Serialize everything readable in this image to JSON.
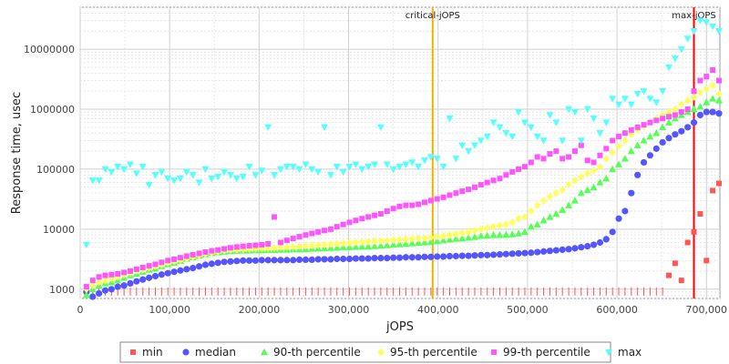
{
  "chart_data": {
    "type": "scatter",
    "xlabel": "jOPS",
    "ylabel": "Response time, usec",
    "xlim": [
      0,
      715000
    ],
    "ylim": [
      700,
      50000000
    ],
    "y_scale": "log",
    "grid": true,
    "x_ticks": [
      0,
      100000,
      200000,
      300000,
      400000,
      500000,
      600000,
      700000
    ],
    "x_tick_labels": [
      "0",
      "100,000",
      "200,000",
      "300,000",
      "400,000",
      "500,000",
      "600,000",
      "700,000"
    ],
    "y_ticks": [
      1000,
      10000,
      100000,
      1000000,
      10000000
    ],
    "y_tick_labels": [
      "1000",
      "10000",
      "100000",
      "1000000",
      "10000000"
    ],
    "markers": [
      {
        "label": "critical-jOPS",
        "x": 394000,
        "color": "#f0b400"
      },
      {
        "label": "max-jOPS",
        "x": 686000,
        "color": "#ff0000"
      }
    ],
    "legend_position": "bottom",
    "x": [
      7000,
      14000,
      21000,
      28000,
      35000,
      42000,
      49000,
      56000,
      63000,
      70000,
      77000,
      84000,
      91000,
      98000,
      105000,
      112000,
      119000,
      126000,
      133000,
      140000,
      147000,
      154000,
      161000,
      168000,
      175000,
      182000,
      189000,
      196000,
      203000,
      210000,
      217000,
      224000,
      231000,
      238000,
      245000,
      252000,
      259000,
      266000,
      273000,
      280000,
      287000,
      294000,
      301000,
      308000,
      315000,
      322000,
      329000,
      336000,
      343000,
      350000,
      357000,
      364000,
      371000,
      378000,
      385000,
      392000,
      399000,
      406000,
      413000,
      420000,
      427000,
      434000,
      441000,
      448000,
      455000,
      462000,
      469000,
      476000,
      483000,
      490000,
      497000,
      504000,
      511000,
      518000,
      525000,
      532000,
      539000,
      546000,
      553000,
      560000,
      567000,
      574000,
      581000,
      588000,
      595000,
      602000,
      609000,
      616000,
      623000,
      630000,
      637000,
      644000,
      651000,
      658000,
      665000,
      672000,
      679000,
      686000,
      693000,
      700000,
      707000,
      714000
    ],
    "series": [
      {
        "name": "min",
        "color": "#ff5555",
        "shape": "square",
        "values": [
          1000,
          1000,
          1000,
          1000,
          1000,
          1000,
          1000,
          1000,
          1000,
          1000,
          1000,
          1000,
          1000,
          1000,
          1000,
          1000,
          1000,
          1000,
          1000,
          1000,
          1000,
          1000,
          1000,
          1000,
          1000,
          1000,
          1000,
          1000,
          1000,
          1000,
          1000,
          1000,
          1000,
          1000,
          1000,
          1000,
          1000,
          1000,
          1000,
          1000,
          1000,
          1000,
          1000,
          1000,
          1000,
          1000,
          1000,
          1000,
          1000,
          1000,
          1000,
          1000,
          1000,
          1000,
          1000,
          1000,
          1000,
          1000,
          1000,
          1000,
          1000,
          1000,
          1000,
          1000,
          1000,
          1000,
          1000,
          1000,
          1000,
          1000,
          1000,
          1000,
          1000,
          1000,
          1000,
          1000,
          1000,
          1000,
          1000,
          1000,
          1000,
          1000,
          1000,
          1000,
          1000,
          1000,
          1000,
          1000,
          1000,
          1000,
          1000,
          1000,
          1000,
          1700,
          2700,
          1400,
          6000,
          9000,
          18000,
          3000,
          44000,
          58000
        ]
      },
      {
        "name": "median",
        "color": "#5555ff",
        "shape": "circle",
        "values": [
          900,
          750,
          850,
          950,
          1000,
          1100,
          1150,
          1250,
          1350,
          1450,
          1550,
          1650,
          1750,
          1850,
          1950,
          2050,
          2150,
          2250,
          2400,
          2550,
          2650,
          2750,
          2850,
          2900,
          2950,
          3000,
          3000,
          3000,
          3050,
          3050,
          3050,
          3050,
          3050,
          3050,
          3100,
          3100,
          3100,
          3150,
          3150,
          3150,
          3200,
          3200,
          3200,
          3250,
          3250,
          3250,
          3300,
          3300,
          3300,
          3350,
          3350,
          3400,
          3400,
          3400,
          3450,
          3450,
          3500,
          3500,
          3550,
          3550,
          3600,
          3600,
          3650,
          3700,
          3700,
          3750,
          3800,
          3850,
          3900,
          3950,
          4000,
          4050,
          4150,
          4250,
          4350,
          4450,
          4550,
          4650,
          4800,
          5000,
          5200,
          5500,
          6000,
          6800,
          9000,
          15000,
          20000,
          40000,
          80000,
          130000,
          170000,
          220000,
          280000,
          330000,
          380000,
          430000,
          500000,
          600000,
          800000,
          900000,
          900000,
          850000
        ]
      },
      {
        "name": "90-th percentile",
        "color": "#55ff55",
        "shape": "triangle-up",
        "values": [
          800,
          1000,
          1150,
          1250,
          1300,
          1400,
          1550,
          1700,
          1800,
          1950,
          2100,
          2200,
          2400,
          2600,
          2750,
          2950,
          3200,
          3400,
          3600,
          3800,
          4000,
          4100,
          4200,
          4300,
          4350,
          4400,
          4400,
          4450,
          4450,
          4500,
          4500,
          4550,
          4550,
          4600,
          4600,
          4650,
          4700,
          4750,
          4800,
          4850,
          4900,
          5000,
          5000,
          5050,
          5100,
          5100,
          5200,
          5300,
          5400,
          5500,
          5600,
          5700,
          5800,
          5900,
          6000,
          6100,
          6300,
          6500,
          6700,
          6900,
          7000,
          7200,
          7400,
          7700,
          7800,
          8000,
          8000,
          8100,
          8200,
          8500,
          9000,
          11000,
          12000,
          14000,
          16000,
          18000,
          21000,
          25000,
          30000,
          40000,
          45000,
          50000,
          60000,
          70000,
          100000,
          120000,
          150000,
          200000,
          250000,
          300000,
          350000,
          400000,
          500000,
          600000,
          700000,
          800000,
          900000,
          1000000,
          1100000,
          1300000,
          1500000,
          1400000
        ]
      },
      {
        "name": "95-th percentile",
        "color": "#ffff55",
        "shape": "diamond",
        "values": [
          1000,
          1150,
          1300,
          1400,
          1500,
          1600,
          1750,
          1850,
          2000,
          2100,
          2250,
          2400,
          2550,
          2750,
          2900,
          3050,
          3250,
          3450,
          3650,
          3850,
          4050,
          4200,
          4400,
          4500,
          4550,
          4600,
          4650,
          4700,
          4750,
          4800,
          4850,
          4950,
          5000,
          5050,
          5150,
          5250,
          5300,
          5400,
          5500,
          5600,
          5700,
          5800,
          5900,
          6000,
          6100,
          6200,
          6300,
          6400,
          6500,
          6600,
          6700,
          6800,
          6900,
          7000,
          7100,
          7300,
          7500,
          7700,
          8000,
          8300,
          8600,
          9000,
          9500,
          10000,
          10500,
          11000,
          11500,
          12000,
          13000,
          15000,
          16000,
          20000,
          25000,
          30000,
          35000,
          40000,
          45000,
          55000,
          65000,
          75000,
          85000,
          95000,
          110000,
          150000,
          190000,
          240000,
          300000,
          380000,
          450000,
          520000,
          600000,
          700000,
          800000,
          900000,
          1000000,
          1200000,
          1400000,
          1600000,
          1900000,
          2200000,
          2500000,
          1800000
        ]
      },
      {
        "name": "99-th percentile",
        "color": "#ff55ff",
        "shape": "square",
        "values": [
          1100,
          1400,
          1600,
          1700,
          1750,
          1800,
          1900,
          2000,
          2150,
          2300,
          2450,
          2600,
          2800,
          3000,
          3150,
          3350,
          3550,
          3750,
          3950,
          4150,
          4350,
          4500,
          4700,
          4900,
          5050,
          5200,
          5300,
          5400,
          5500,
          5700,
          16000,
          6000,
          6500,
          7000,
          7500,
          8000,
          8500,
          9000,
          9500,
          10000,
          11000,
          12000,
          13000,
          14000,
          15000,
          16000,
          17000,
          18000,
          20000,
          22000,
          24000,
          25000,
          25000,
          26000,
          28000,
          30000,
          32000,
          34000,
          37000,
          40000,
          43000,
          46000,
          50000,
          55000,
          60000,
          65000,
          70000,
          80000,
          90000,
          100000,
          110000,
          130000,
          160000,
          150000,
          180000,
          200000,
          150000,
          160000,
          200000,
          250000,
          140000,
          130000,
          170000,
          220000,
          300000,
          350000,
          400000,
          450000,
          500000,
          550000,
          600000,
          650000,
          700000,
          750000,
          800000,
          900000,
          1000000,
          2000000,
          3000000,
          3500000,
          4500000,
          3000000
        ]
      },
      {
        "name": "max",
        "color": "#55ffff",
        "shape": "triangle-down",
        "values": [
          5500,
          65000,
          65000,
          100000,
          90000,
          110000,
          100000,
          120000,
          85000,
          110000,
          55000,
          80000,
          90000,
          70000,
          65000,
          70000,
          90000,
          80000,
          60000,
          100000,
          70000,
          75000,
          90000,
          80000,
          70000,
          75000,
          110000,
          80000,
          95000,
          500000,
          80000,
          100000,
          110000,
          110000,
          100000,
          120000,
          100000,
          90000,
          500000,
          80000,
          110000,
          90000,
          110000,
          120000,
          100000,
          110000,
          120000,
          500000,
          120000,
          100000,
          110000,
          120000,
          130000,
          110000,
          140000,
          160000,
          150000,
          110000,
          700000,
          150000,
          250000,
          200000,
          250000,
          300000,
          350000,
          600000,
          500000,
          400000,
          350000,
          900000,
          600000,
          500000,
          350000,
          300000,
          800000,
          600000,
          300000,
          1000000,
          900000,
          300000,
          1000000,
          700000,
          400000,
          600000,
          1500000,
          1200000,
          1500000,
          1200000,
          1800000,
          2000000,
          1500000,
          1300000,
          2000000,
          5000000,
          7000000,
          10000000,
          15000000,
          20000000,
          30000000,
          28000000,
          24000000,
          20000000
        ]
      }
    ]
  }
}
